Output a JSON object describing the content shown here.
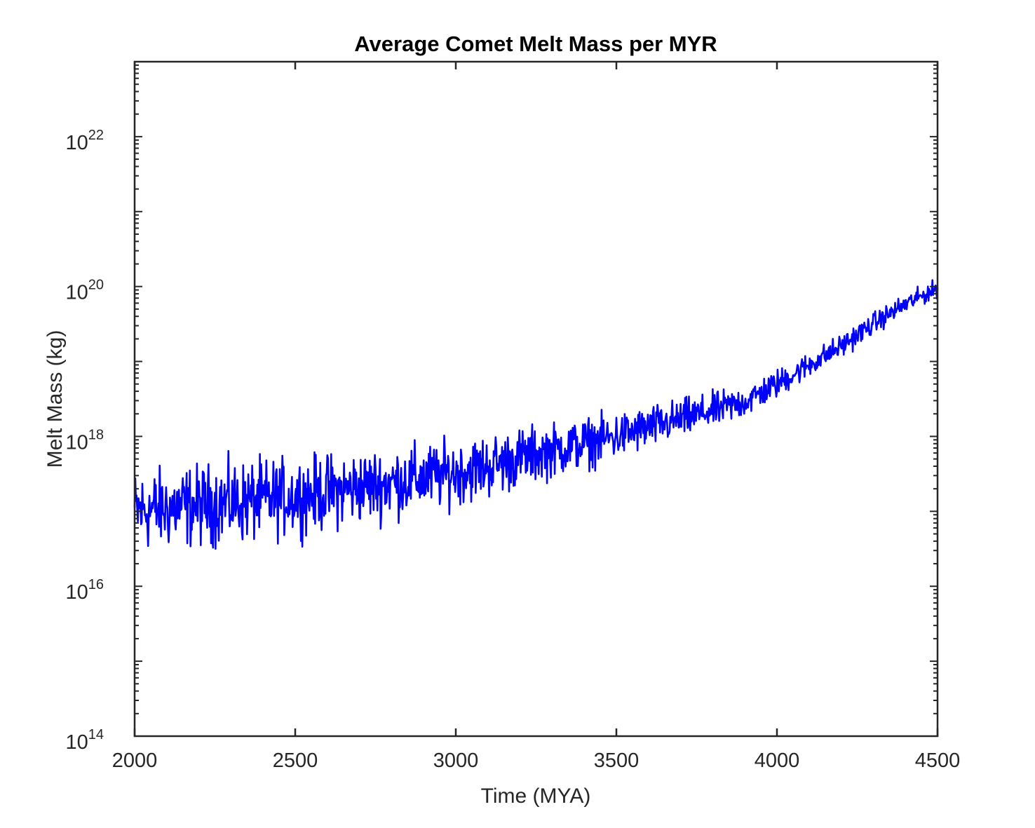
{
  "chart_data": {
    "type": "line",
    "title": "Average Comet Melt Mass per MYR",
    "xlabel": "Time (MYA)",
    "ylabel": "Melt Mass (kg)",
    "xlim": [
      2000,
      4500
    ],
    "ylim": [
      100000000000000.0,
      1e+23
    ],
    "yscale": "log",
    "grid": false,
    "line_color": "#0000ff",
    "x_ticks": [
      {
        "value": 2000,
        "label": "2000"
      },
      {
        "value": 2500,
        "label": "2500"
      },
      {
        "value": 3000,
        "label": "3000"
      },
      {
        "value": 3500,
        "label": "3500"
      },
      {
        "value": 4000,
        "label": "4000"
      },
      {
        "value": 4500,
        "label": "4500"
      }
    ],
    "y_ticks": [
      {
        "exponent": 14,
        "base": "10",
        "exp_label": "14"
      },
      {
        "exponent": 16,
        "base": "10",
        "exp_label": "16"
      },
      {
        "exponent": 18,
        "base": "10",
        "exp_label": "18"
      },
      {
        "exponent": 20,
        "base": "10",
        "exp_label": "20"
      },
      {
        "exponent": 22,
        "base": "10",
        "exp_label": "22"
      }
    ],
    "series": [
      {
        "x": [
          2000,
          2100,
          2200,
          2300,
          2400,
          2500,
          2600,
          2700,
          2800,
          2900,
          3000,
          3100,
          3200,
          3300,
          3400,
          3500,
          3600,
          3700,
          3800,
          3900,
          4000,
          4100,
          4200,
          4300,
          4400,
          4500
        ],
        "y": [
          1e+17,
          1.1e+17,
          1.2e+17,
          1.3e+17,
          1.4e+17,
          1.6e+17,
          1.8e+17,
          2.1e+17,
          2.4e+17,
          2.8e+17,
          3.3e+17,
          4e+17,
          5.2e+17,
          6.5e+17,
          8e+17,
          1e+18,
          1.3e+18,
          1.7e+18,
          2.2e+18,
          2.9e+18,
          5e+18,
          9e+18,
          1.6e+19,
          3.2e+19,
          5.8e+19,
          9.5e+19
        ],
        "noise_dex": [
          0.45,
          0.45,
          0.45,
          0.45,
          0.45,
          0.42,
          0.42,
          0.4,
          0.4,
          0.38,
          0.36,
          0.35,
          0.33,
          0.3,
          0.28,
          0.26,
          0.24,
          0.22,
          0.2,
          0.18,
          0.16,
          0.14,
          0.13,
          0.12,
          0.11,
          0.1
        ]
      }
    ]
  }
}
